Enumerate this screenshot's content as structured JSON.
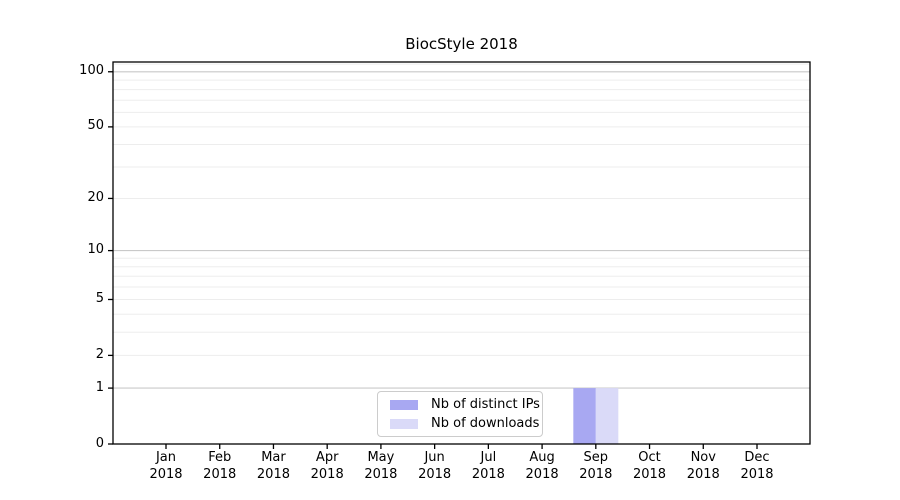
{
  "title": "BiocStyle 2018",
  "chart_data": {
    "type": "bar",
    "title": "BiocStyle 2018",
    "categories": [
      "Jan 2018",
      "Feb 2018",
      "Mar 2018",
      "Apr 2018",
      "May 2018",
      "Jun 2018",
      "Jul 2018",
      "Aug 2018",
      "Sep 2018",
      "Oct 2018",
      "Nov 2018",
      "Dec 2018"
    ],
    "series": [
      {
        "name": "Nb of distinct IPs",
        "color": "#a8a8f2",
        "values": [
          0,
          0,
          0,
          0,
          0,
          0,
          0,
          0,
          1,
          0,
          0,
          0
        ]
      },
      {
        "name": "Nb of downloads",
        "color": "#dadaf8",
        "values": [
          0,
          0,
          0,
          0,
          0,
          0,
          0,
          0,
          1,
          0,
          0,
          0
        ]
      }
    ],
    "xlabel": "",
    "ylabel": "",
    "yscale": "log1p",
    "ylim": [
      0,
      113
    ],
    "yticks": [
      0,
      1,
      2,
      5,
      10,
      20,
      50,
      100
    ],
    "grid": {
      "major_at": [
        1,
        10,
        100
      ],
      "minor_at": [
        2,
        3,
        4,
        5,
        6,
        7,
        8,
        9,
        20,
        30,
        40,
        50,
        60,
        70,
        80,
        90,
        110
      ],
      "major_color": "#c9c9c9",
      "minor_color": "#ededed"
    },
    "legend_position": "lower center",
    "bar_value_annotation": "Sep 2018: 1 distinct IP, 1 download"
  },
  "colors": {
    "background": "#ffffff",
    "axis": "#000000",
    "text": "#000000",
    "legend_border": "#cccccc"
  }
}
